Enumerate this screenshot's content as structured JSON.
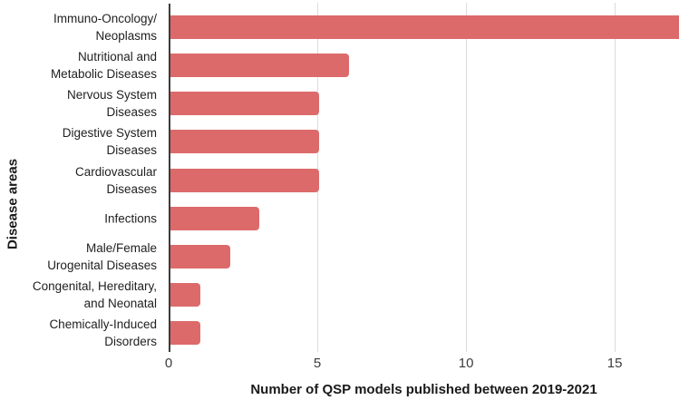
{
  "chart_data": {
    "type": "bar",
    "orientation": "horizontal",
    "title": "",
    "xlabel": "Number of QSP models published between 2019-2021",
    "ylabel": "Disease areas",
    "categories": [
      "Immuno-Oncology/Neoplasms",
      "Nutritional and Metabolic Diseases",
      "Nervous System Diseases",
      "Digestive System Diseases",
      "Cardiovascular Diseases",
      "Infections",
      "Male/Female Urogenital Diseases",
      "Congenital, Hereditary, and Neonatal",
      "Chemically-Induced Disorders"
    ],
    "category_label_lines": [
      [
        "Immuno-Oncology/",
        "Neoplasms"
      ],
      [
        "Nutritional and",
        "Metabolic Diseases"
      ],
      [
        "Nervous System",
        "Diseases"
      ],
      [
        "Digestive System",
        "Diseases"
      ],
      [
        "Cardiovascular",
        "Diseases"
      ],
      [
        "Infections"
      ],
      [
        "Male/Female",
        "Urogenital Diseases"
      ],
      [
        "Congenital, Hereditary,",
        "and Neonatal"
      ],
      [
        "Chemically-Induced",
        "Disorders"
      ]
    ],
    "values": [
      17,
      6,
      5,
      5,
      5,
      3,
      2,
      1,
      1
    ],
    "bar_clipped_at_right_edge": [
      true,
      false,
      false,
      false,
      false,
      false,
      false,
      false,
      false
    ],
    "xticks": [
      0,
      5,
      10,
      15
    ],
    "xlim": [
      0,
      17.16
    ],
    "grid": true,
    "legend": "none",
    "colors": {
      "bar": "#dd6a6a",
      "gridline": "#dcdcdc",
      "axis_line": "#3c3c3c",
      "label_text": "#212121",
      "tick_text": "#3c3c3c",
      "title_text": "#1a1a1a"
    }
  }
}
